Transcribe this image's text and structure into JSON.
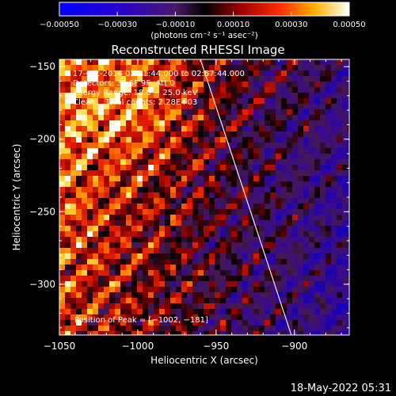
{
  "chart_data": {
    "type": "heatmap",
    "title": "Reconstructed RHESSI Image",
    "xlabel": "Heliocentric X (arcsec)",
    "ylabel": "Heliocentric Y (arcsec)",
    "xlim": [
      -1050,
      -865
    ],
    "ylim": [
      -335,
      -145
    ],
    "x_ticks": [
      -1050,
      -1000,
      -950,
      -900
    ],
    "x_tick_labels": [
      "−1050",
      "−1000",
      "−950",
      "−900"
    ],
    "y_ticks": [
      -150,
      -200,
      -250,
      -300
    ],
    "y_tick_labels": [
      "−150",
      "−200",
      "−250",
      "−300"
    ],
    "colorbar": {
      "range": [
        -0.0005,
        0.0005
      ],
      "ticks": [
        -0.0005,
        -0.0003,
        -0.0001,
        0.0001,
        0.0003,
        0.0005
      ],
      "tick_labels": [
        "−0.00050",
        "−0.00030",
        "−0.00010",
        "0.00010",
        "0.00030",
        "0.00050"
      ],
      "unit_label": "(photons cm⁻² s⁻¹ asec⁻²)"
    },
    "annotations": [
      "17-Oct-2014 02:51:44.000 to 02:57:44.000",
      "Detectors: 3F 6F 9F, Att 0",
      "Energy Range: 18.0 − 25.0 keV",
      "Clean    Total counts: 2.28E+03"
    ],
    "peak_label": "Position of Peak = [−1002, −181]",
    "peak_position": [
      -1002,
      -181
    ],
    "limb_line": [
      [
        -960,
        -145
      ],
      [
        -902,
        -335
      ]
    ],
    "grid": false
  },
  "footer": {
    "timestamp": "18-May-2022 05:31"
  }
}
